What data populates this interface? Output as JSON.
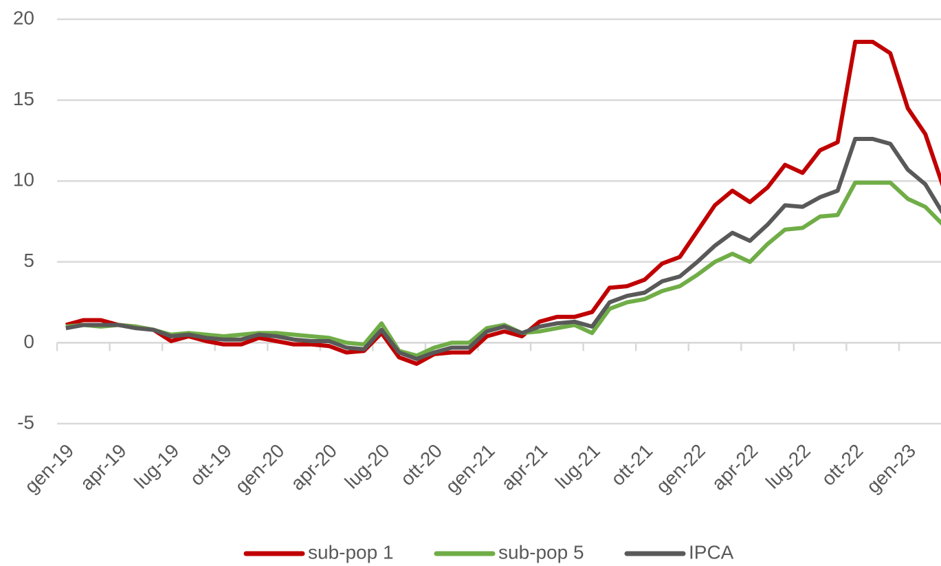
{
  "chart_data": {
    "type": "line",
    "categories": [
      "gen-19",
      null,
      null,
      "apr-19",
      null,
      null,
      "lug-19",
      null,
      null,
      "ott-19",
      null,
      null,
      "gen-20",
      null,
      null,
      "apr-20",
      null,
      null,
      "lug-20",
      null,
      null,
      "ott-20",
      null,
      null,
      "gen-21",
      null,
      null,
      "apr-21",
      null,
      null,
      "lug-21",
      null,
      null,
      "ott-21",
      null,
      null,
      "gen-22",
      null,
      null,
      "apr-22",
      null,
      null,
      "lug-22",
      null,
      null,
      "ott-22",
      null,
      null,
      "gen-23",
      null,
      null
    ],
    "series": [
      {
        "name": "sub-pop 1",
        "color": "#c00000",
        "values": [
          1.1,
          1.4,
          1.4,
          1.1,
          1.0,
          0.8,
          0.1,
          0.4,
          0.1,
          -0.1,
          -0.1,
          0.3,
          0.1,
          -0.1,
          -0.1,
          -0.2,
          -0.6,
          -0.5,
          0.6,
          -0.9,
          -1.3,
          -0.7,
          -0.6,
          -0.6,
          0.4,
          0.7,
          0.4,
          1.3,
          1.6,
          1.6,
          1.9,
          3.4,
          3.5,
          3.9,
          4.9,
          5.3,
          6.9,
          8.5,
          9.4,
          8.7,
          9.6,
          11.0,
          10.5,
          11.9,
          12.4,
          18.6,
          18.6,
          17.9,
          14.5,
          12.9,
          9.7
        ]
      },
      {
        "name": "sub-pop 5",
        "color": "#70ad47",
        "values": [
          1.0,
          1.1,
          1.0,
          1.1,
          1.0,
          0.8,
          0.5,
          0.6,
          0.5,
          0.4,
          0.5,
          0.6,
          0.6,
          0.5,
          0.4,
          0.3,
          0.0,
          -0.1,
          1.2,
          -0.5,
          -0.8,
          -0.3,
          0.0,
          0.0,
          0.9,
          1.1,
          0.6,
          0.7,
          0.9,
          1.1,
          0.6,
          2.1,
          2.5,
          2.7,
          3.2,
          3.5,
          4.2,
          5.0,
          5.5,
          5.0,
          6.1,
          7.0,
          7.1,
          7.8,
          7.9,
          9.9,
          9.9,
          9.9,
          8.9,
          8.4,
          7.3
        ]
      },
      {
        "name": "IPCA",
        "color": "#595959",
        "values": [
          0.9,
          1.1,
          1.1,
          1.1,
          0.9,
          0.8,
          0.4,
          0.5,
          0.3,
          0.2,
          0.2,
          0.5,
          0.4,
          0.2,
          0.1,
          0.1,
          -0.3,
          -0.4,
          0.8,
          -0.6,
          -1.0,
          -0.6,
          -0.3,
          -0.3,
          0.7,
          1.0,
          0.6,
          1.0,
          1.2,
          1.3,
          1.0,
          2.5,
          2.9,
          3.1,
          3.8,
          4.1,
          5.0,
          6.0,
          6.8,
          6.3,
          7.3,
          8.5,
          8.4,
          9.0,
          9.4,
          12.6,
          12.6,
          12.3,
          10.7,
          9.8,
          8.0
        ]
      }
    ],
    "ylim": [
      -5,
      20
    ],
    "yticks": [
      -5,
      0,
      5,
      10,
      15,
      20
    ],
    "grid": true,
    "legend": "bottom"
  }
}
